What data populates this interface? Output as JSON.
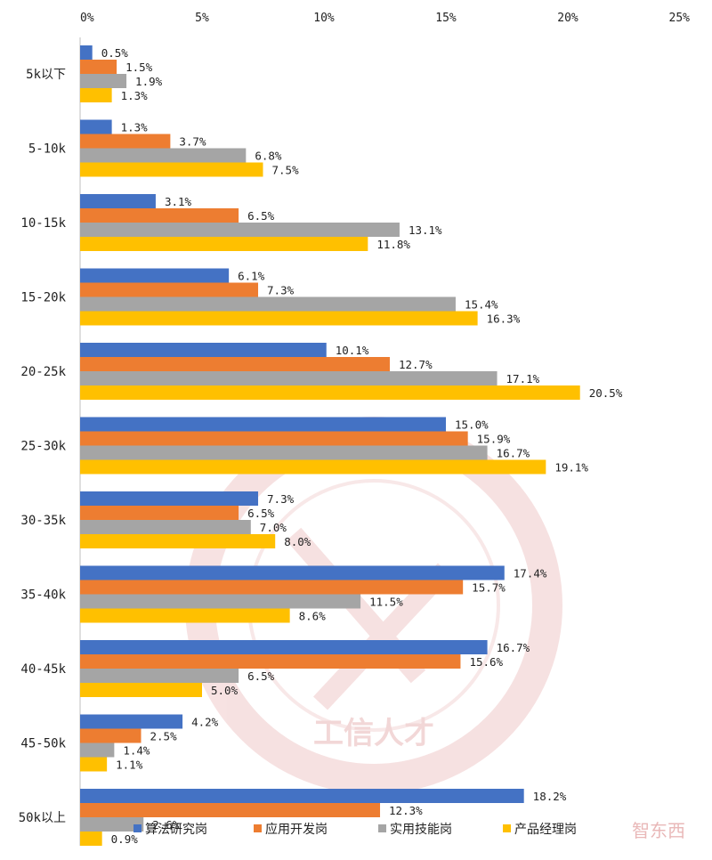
{
  "chart_data": {
    "type": "bar",
    "orientation": "horizontal",
    "categories": [
      "5k以下",
      "5-10k",
      "10-15k",
      "15-20k",
      "20-25k",
      "25-30k",
      "30-35k",
      "35-40k",
      "40-45k",
      "45-50k",
      "50k以上"
    ],
    "x_ticks": [
      "0%",
      "5%",
      "10%",
      "15%",
      "20%",
      "25%"
    ],
    "xlim": [
      0,
      25
    ],
    "x_axis_position": "top",
    "grid": false,
    "legend_position": "bottom-right",
    "series": [
      {
        "name": "算法研究岗",
        "color": "#4472C4",
        "values": [
          0.5,
          1.3,
          3.1,
          6.1,
          10.1,
          15.0,
          7.3,
          17.4,
          16.7,
          4.2,
          18.2
        ],
        "labels": [
          "0.5%",
          "1.3%",
          "3.1%",
          "6.1%",
          "10.1%",
          "15.0%",
          "7.3%",
          "17.4%",
          "16.7%",
          "4.2%",
          "18.2%"
        ]
      },
      {
        "name": "应用开发岗",
        "color": "#ED7D31",
        "values": [
          1.5,
          3.7,
          6.5,
          7.3,
          12.7,
          15.9,
          6.5,
          15.7,
          15.6,
          2.5,
          12.3
        ],
        "labels": [
          "1.5%",
          "3.7%",
          "6.5%",
          "7.3%",
          "12.7%",
          "15.9%",
          "6.5%",
          "15.7%",
          "15.6%",
          "2.5%",
          "12.3%"
        ]
      },
      {
        "name": "实用技能岗",
        "color": "#A5A5A5",
        "values": [
          1.9,
          6.8,
          13.1,
          15.4,
          17.1,
          16.7,
          7.0,
          11.5,
          6.5,
          1.4,
          2.6
        ],
        "labels": [
          "1.9%",
          "6.8%",
          "13.1%",
          "15.4%",
          "17.1%",
          "16.7%",
          "7.0%",
          "11.5%",
          "6.5%",
          "1.4%",
          "2.6%"
        ]
      },
      {
        "name": "产品经理岗",
        "color": "#FFC000",
        "values": [
          1.3,
          7.5,
          11.8,
          16.3,
          20.5,
          19.1,
          8.0,
          8.6,
          5.0,
          1.1,
          0.9
        ],
        "labels": [
          "1.3%",
          "7.5%",
          "11.8%",
          "16.3%",
          "20.5%",
          "19.1%",
          "8.0%",
          "8.6%",
          "5.0%",
          "1.1%",
          "0.9%"
        ]
      }
    ],
    "watermark": "工信人才",
    "corner_logo": "智东西"
  }
}
